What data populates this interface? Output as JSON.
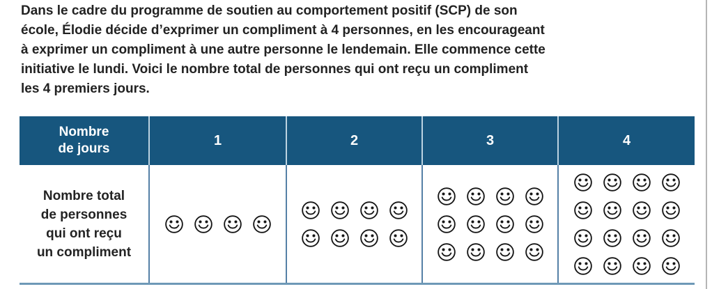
{
  "colors": {
    "header_bg": "#17567e",
    "header_text": "#ffffff",
    "body_text": "#232323",
    "cell_border": "#5580a6",
    "header_divider": "#bcd3e1",
    "table_bottom_border": "#6e99b7",
    "page_edge_line": "#b5b5b5",
    "smiley_stroke": "#161616"
  },
  "intro": {
    "text": "Dans le cadre du programme de soutien au comportement positif (SCP) de son\nécole, Élodie décide d’exprimer un compliment à 4 personnes, en les encourageant\nà exprimer un compliment à une autre personne le lendemain. Elle commence cette\ninitiative le lundi. Voici le nombre total de personnes qui ont reçu un compliment\nles 4 premiers jours."
  },
  "table": {
    "corner_label": "Nombre\nde jours",
    "day_headers": [
      "1",
      "2",
      "3",
      "4"
    ],
    "row_label": "Nombre total\nde personnes\nqui ont reçu\nun compliment",
    "smiley_counts": [
      4,
      8,
      12,
      16
    ],
    "smileys_per_row": 4,
    "smiley_icon": "smiling-face"
  },
  "chart_data": {
    "type": "table",
    "xlabel": "Nombre de jours",
    "categories": [
      "1",
      "2",
      "3",
      "4"
    ],
    "series": [
      {
        "name": "Nombre total de personnes qui ont reçu un compliment",
        "values": [
          4,
          8,
          12,
          16
        ]
      }
    ]
  }
}
